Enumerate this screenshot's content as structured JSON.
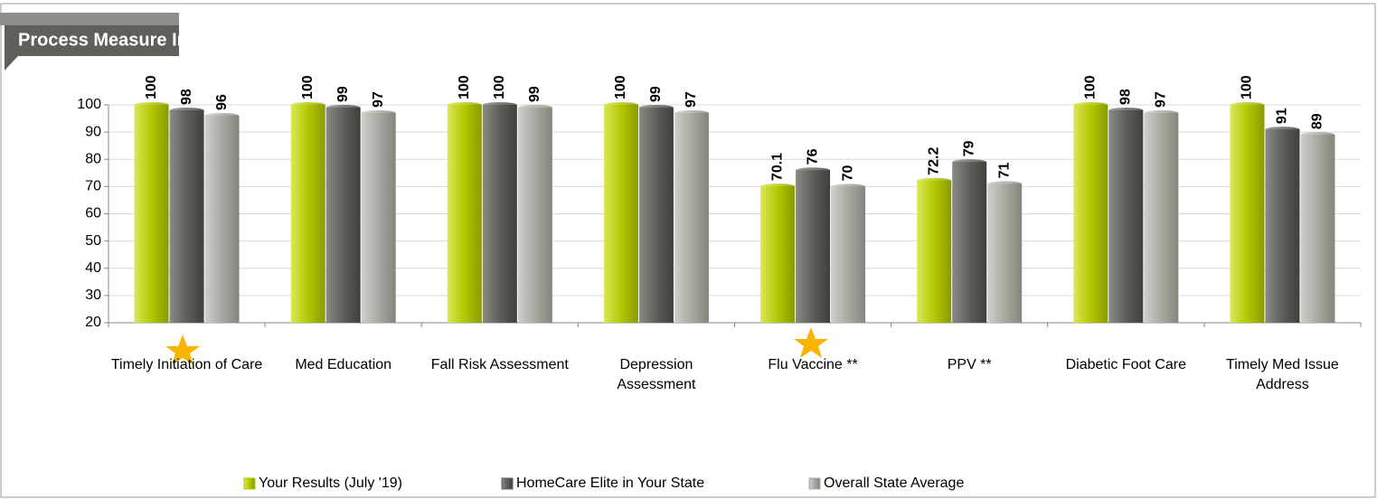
{
  "chart_data": {
    "type": "bar",
    "title": "Process Measure Implementation",
    "categories": [
      "Timely Initiation of Care",
      "Med Education",
      "Fall Risk Assessment",
      "Depression Assessment",
      "Flu Vaccine **",
      "PPV **",
      "Diabetic Foot Care",
      "Timely Med Issue Address"
    ],
    "series": [
      {
        "name": "Your Results (July '19)",
        "color": "#b3c700",
        "values": [
          100,
          100,
          100,
          100,
          70.1,
          72.2,
          100,
          100
        ]
      },
      {
        "name": "HomeCare Elite in Your State",
        "color": "#5e5f59",
        "values": [
          98,
          99,
          100,
          99,
          76,
          79,
          98,
          91
        ]
      },
      {
        "name": "Overall State Average",
        "color": "#a9a8a1",
        "values": [
          96,
          97,
          99,
          97,
          70,
          71,
          97,
          89
        ]
      }
    ],
    "ylim": [
      20,
      100
    ],
    "yticks": [
      20,
      30,
      40,
      50,
      60,
      70,
      80,
      90,
      100
    ],
    "grid": true,
    "legend": "bottom"
  }
}
